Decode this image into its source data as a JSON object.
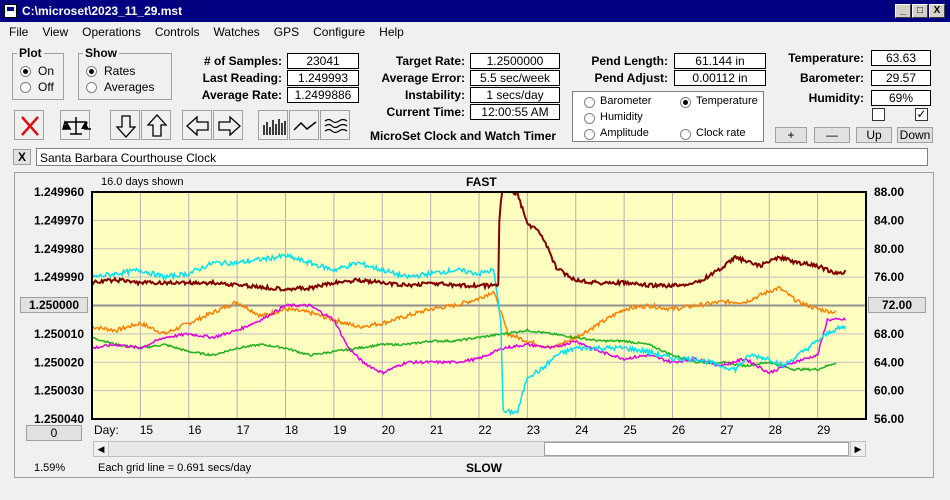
{
  "window": {
    "title": "C:\\microset\\2023_11_29.mst",
    "minimize": "_",
    "maximize": "□",
    "close": "X"
  },
  "menu": [
    "File",
    "View",
    "Operations",
    "Controls",
    "Watches",
    "GPS",
    "Configure",
    "Help"
  ],
  "plot_group": {
    "legend": "Plot",
    "options": [
      {
        "label": "On",
        "selected": true
      },
      {
        "label": "Off",
        "selected": false
      }
    ]
  },
  "show_group": {
    "legend": "Show",
    "options": [
      {
        "label": "Rates",
        "selected": true
      },
      {
        "label": "Averages",
        "selected": false
      }
    ]
  },
  "stats": {
    "samples_label": "# of Samples:",
    "samples": "23041",
    "last_label": "Last Reading:",
    "last": "1.249993",
    "avg_label": "Average Rate:",
    "avg": "1.2499886"
  },
  "target": {
    "rate_label": "Target Rate:",
    "rate": "1.2500000",
    "error_label": "Average Error:",
    "error": "5.5 sec/week",
    "instability_label": "Instability:",
    "instability": "1 secs/day",
    "time_label": "Current Time:",
    "time": "12:00:55 AM"
  },
  "product_label": "MicroSet Clock and Watch Timer",
  "pend": {
    "length_label": "Pend Length:",
    "length": "61.144 in",
    "adjust_label": "Pend Adjust:",
    "adjust": "0.00112 in"
  },
  "env": {
    "temp_label": "Temperature:",
    "temp": "63.63",
    "baro_label": "Barometer:",
    "baro": "29.57",
    "hum_label": "Humidity:",
    "hum": "69%"
  },
  "overlay_options": [
    {
      "label": "Barometer",
      "color": "#ff8000",
      "selected": false
    },
    {
      "label": "Temperature",
      "color": "#00a000",
      "selected": true
    },
    {
      "label": "Humidity",
      "color": "#e000e0",
      "selected": false
    },
    {
      "label": "Clock rate",
      "color": "#800000",
      "selected": false
    },
    {
      "label": "Amplitude",
      "color": "#00d0e0",
      "selected": false
    }
  ],
  "checkboxes": [
    {
      "checked": false
    },
    {
      "checked": true
    }
  ],
  "scale_buttons": {
    "plus": "+",
    "minus": "—",
    "up": "Up",
    "down": "Down"
  },
  "description": {
    "clear": "X",
    "text": "Santa Barbara Courthouse Clock"
  },
  "status": {
    "days_shown": "16.0 days shown",
    "top": "FAST",
    "bottom": "SLOW",
    "grid_note": "Each grid line = 0.691 secs/day",
    "percent": "1.59%",
    "left_value": "0",
    "center_left": "1.250000",
    "center_right": "72.00"
  },
  "chart_data": {
    "type": "line",
    "xlabel": "Day:",
    "x_ticks": [
      "15",
      "16",
      "17",
      "18",
      "19",
      "20",
      "21",
      "22",
      "23",
      "24",
      "25",
      "26",
      "27",
      "28",
      "29"
    ],
    "xlim": [
      14.0,
      30.0
    ],
    "y_left": {
      "ticks": [
        "1.249960",
        "1.249970",
        "1.249980",
        "1.249990",
        "1.250000",
        "1.250010",
        "1.250020",
        "1.250030",
        "1.250040"
      ],
      "ylim": [
        1.24996,
        1.25004
      ],
      "inverted": true
    },
    "y_right": {
      "ticks": [
        "88.00",
        "84.00",
        "80.00",
        "76.00",
        "72.00",
        "68.00",
        "64.00",
        "60.00",
        "56.00"
      ],
      "ylim": [
        56,
        88
      ]
    },
    "grid": true,
    "series": [
      {
        "name": "Clock rate",
        "color": "#800000",
        "axis": "left",
        "noise": 7e-07,
        "points": [
          [
            14.0,
            1.249992
          ],
          [
            14.5,
            1.249991
          ],
          [
            15.0,
            1.249992
          ],
          [
            15.8,
            1.249992
          ],
          [
            16.5,
            1.249992
          ],
          [
            17.2,
            1.249993
          ],
          [
            17.8,
            1.249994
          ],
          [
            18.5,
            1.249994
          ],
          [
            19.0,
            1.249992
          ],
          [
            19.5,
            1.249991
          ],
          [
            20.0,
            1.249992
          ],
          [
            20.5,
            1.249993
          ],
          [
            21.0,
            1.249992
          ],
          [
            21.5,
            1.249993
          ],
          [
            22.0,
            1.249993
          ],
          [
            22.4,
            1.249993
          ],
          [
            22.42,
            1.24997
          ],
          [
            22.48,
            1.249958
          ],
          [
            22.8,
            1.249961
          ],
          [
            23.0,
            1.249971
          ],
          [
            23.3,
            1.249975
          ],
          [
            23.6,
            1.249987
          ],
          [
            24.0,
            1.249991
          ],
          [
            24.5,
            1.249992
          ],
          [
            25.0,
            1.249992
          ],
          [
            25.5,
            1.249993
          ],
          [
            26.0,
            1.249993
          ],
          [
            26.5,
            1.249992
          ],
          [
            27.0,
            1.249987
          ],
          [
            27.3,
            1.249983
          ],
          [
            27.8,
            1.249986
          ],
          [
            28.2,
            1.249983
          ],
          [
            28.6,
            1.249985
          ],
          [
            29.0,
            1.249986
          ],
          [
            29.4,
            1.249989
          ],
          [
            29.6,
            1.249988
          ]
        ]
      },
      {
        "name": "Barometer",
        "color": "#ff8000",
        "axis": "right",
        "noise": 0.3,
        "points": [
          [
            14.0,
            69
          ],
          [
            14.5,
            68.5
          ],
          [
            15.0,
            69.5
          ],
          [
            15.5,
            68
          ],
          [
            16.0,
            69.5
          ],
          [
            16.5,
            71
          ],
          [
            17.0,
            72.5
          ],
          [
            17.5,
            70.5
          ],
          [
            18.0,
            71.5
          ],
          [
            18.5,
            71
          ],
          [
            19.0,
            70
          ],
          [
            19.5,
            69
          ],
          [
            20.0,
            69.5
          ],
          [
            20.5,
            70.5
          ],
          [
            21.0,
            71.5
          ],
          [
            21.5,
            72
          ],
          [
            22.0,
            73
          ],
          [
            22.3,
            74
          ],
          [
            22.6,
            68
          ],
          [
            23.0,
            67
          ],
          [
            23.5,
            66
          ],
          [
            24.0,
            67.5
          ],
          [
            24.5,
            69.5
          ],
          [
            25.0,
            71.5
          ],
          [
            25.5,
            72
          ],
          [
            26.0,
            71.5
          ],
          [
            26.5,
            72
          ],
          [
            27.0,
            72.5
          ],
          [
            27.5,
            72.5
          ],
          [
            28.0,
            74
          ],
          [
            28.2,
            74.5
          ],
          [
            28.6,
            72.5
          ],
          [
            29.0,
            71.5
          ],
          [
            29.4,
            71
          ]
        ]
      },
      {
        "name": "Temperature",
        "color": "#20b020",
        "axis": "right",
        "noise": 0.15,
        "points": [
          [
            14.0,
            67.5
          ],
          [
            14.5,
            66.5
          ],
          [
            15.0,
            66
          ],
          [
            15.5,
            66.5
          ],
          [
            16.0,
            65.5
          ],
          [
            16.5,
            65
          ],
          [
            17.0,
            66
          ],
          [
            17.5,
            66.5
          ],
          [
            18.0,
            66
          ],
          [
            18.5,
            65
          ],
          [
            19.0,
            65.5
          ],
          [
            19.5,
            66
          ],
          [
            20.0,
            66.5
          ],
          [
            20.5,
            66.5
          ],
          [
            21.0,
            67
          ],
          [
            21.5,
            67
          ],
          [
            22.0,
            67.5
          ],
          [
            22.5,
            68
          ],
          [
            23.0,
            68.5
          ],
          [
            23.5,
            68
          ],
          [
            24.0,
            67.5
          ],
          [
            24.5,
            67
          ],
          [
            25.0,
            67
          ],
          [
            25.5,
            66.5
          ],
          [
            26.0,
            65
          ],
          [
            26.5,
            64
          ],
          [
            27.0,
            64
          ],
          [
            27.5,
            63.5
          ],
          [
            28.0,
            64
          ],
          [
            28.5,
            63
          ],
          [
            29.0,
            63
          ],
          [
            29.4,
            64
          ]
        ]
      },
      {
        "name": "Humidity",
        "color": "#e000e0",
        "axis": "right",
        "noise": 0.2,
        "points": [
          [
            14.0,
            66
          ],
          [
            14.5,
            66.5
          ],
          [
            15.0,
            66
          ],
          [
            15.5,
            67.5
          ],
          [
            16.0,
            68
          ],
          [
            16.5,
            67.5
          ],
          [
            17.0,
            68.5
          ],
          [
            17.5,
            70
          ],
          [
            18.0,
            72
          ],
          [
            18.5,
            72
          ],
          [
            19.0,
            70
          ],
          [
            19.3,
            66
          ],
          [
            19.6,
            64
          ],
          [
            20.0,
            62.5
          ],
          [
            20.5,
            64
          ],
          [
            21.0,
            64
          ],
          [
            21.5,
            64
          ],
          [
            22.0,
            64.5
          ],
          [
            22.5,
            66
          ],
          [
            23.0,
            66.5
          ],
          [
            23.5,
            66
          ],
          [
            24.0,
            67
          ],
          [
            24.5,
            65.5
          ],
          [
            25.0,
            64.5
          ],
          [
            25.5,
            65
          ],
          [
            26.0,
            64
          ],
          [
            26.5,
            64.5
          ],
          [
            27.0,
            63.5
          ],
          [
            27.5,
            64.5
          ],
          [
            28.0,
            62.5
          ],
          [
            28.5,
            64
          ],
          [
            29.0,
            65
          ],
          [
            29.2,
            70
          ],
          [
            29.6,
            70
          ]
        ]
      },
      {
        "name": "Amplitude",
        "color": "#00e0f0",
        "axis": "right",
        "noise": 0.35,
        "points": [
          [
            14.0,
            76
          ],
          [
            14.5,
            76.5
          ],
          [
            15.0,
            77
          ],
          [
            15.5,
            76
          ],
          [
            16.0,
            76.5
          ],
          [
            16.5,
            78
          ],
          [
            17.0,
            78
          ],
          [
            17.5,
            78.5
          ],
          [
            18.0,
            79
          ],
          [
            18.5,
            78
          ],
          [
            19.0,
            77
          ],
          [
            19.5,
            78
          ],
          [
            20.0,
            77
          ],
          [
            20.5,
            76
          ],
          [
            21.0,
            76.5
          ],
          [
            21.5,
            77
          ],
          [
            22.0,
            76.5
          ],
          [
            22.3,
            77
          ],
          [
            22.45,
            70
          ],
          [
            22.5,
            57
          ],
          [
            22.8,
            57
          ],
          [
            23.0,
            62
          ],
          [
            23.3,
            63
          ],
          [
            23.6,
            65
          ],
          [
            24.0,
            66
          ],
          [
            24.5,
            66
          ],
          [
            25.0,
            66
          ],
          [
            25.5,
            65.5
          ],
          [
            26.0,
            64.5
          ],
          [
            26.5,
            64.5
          ],
          [
            27.0,
            63.5
          ],
          [
            27.3,
            63
          ],
          [
            27.6,
            65
          ],
          [
            28.0,
            64.5
          ],
          [
            28.3,
            63.5
          ],
          [
            28.6,
            65
          ],
          [
            29.0,
            67
          ],
          [
            29.3,
            68.5
          ],
          [
            29.6,
            69
          ]
        ]
      }
    ]
  }
}
